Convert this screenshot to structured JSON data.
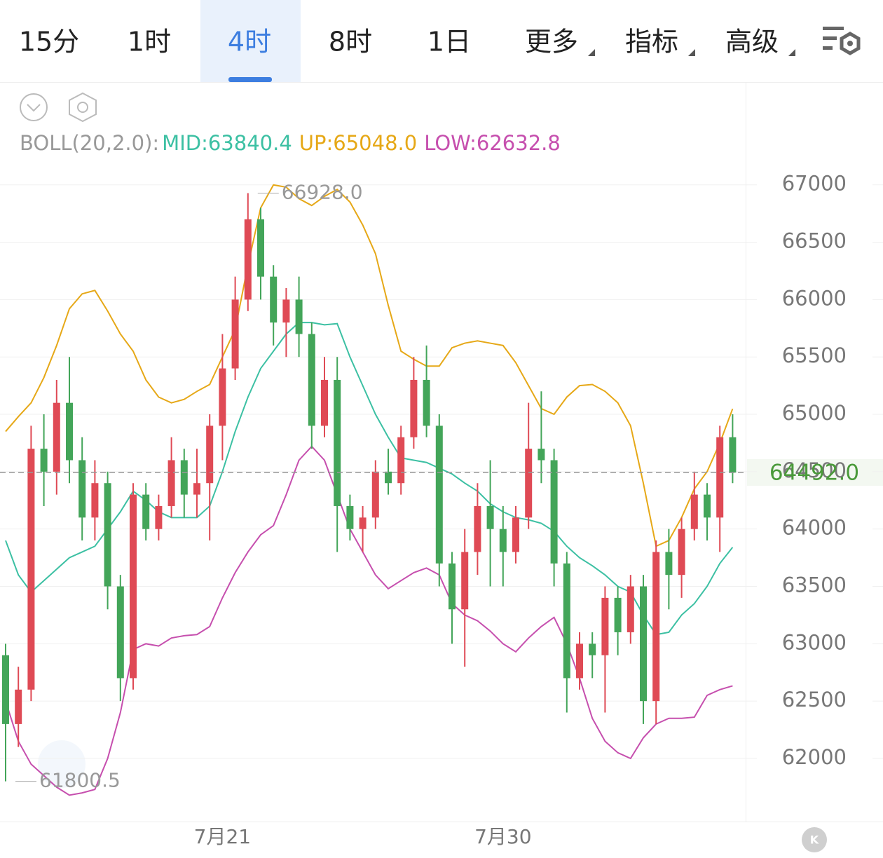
{
  "tabs": [
    "15分",
    "1时",
    "4时",
    "8时",
    "1日",
    "更多",
    "指标",
    "高级"
  ],
  "selected_tab": 2,
  "chart_data": {
    "type": "candlestick",
    "indicator": "BOLL(20,2.0):",
    "categories": [
      null,
      null,
      null,
      null,
      null,
      null,
      null,
      null,
      null,
      null,
      null,
      null,
      null,
      null,
      null,
      null,
      null,
      "7月21",
      null,
      null,
      null,
      null,
      null,
      null,
      null,
      null,
      null,
      null,
      null,
      null,
      null,
      null,
      null,
      null,
      null,
      null,
      null,
      null,
      null,
      "7月30",
      null,
      null,
      null,
      null,
      null,
      null,
      null,
      null,
      null,
      null,
      null,
      null,
      null,
      null,
      null,
      null,
      null,
      null
    ],
    "open": [
      62900,
      62300,
      62600,
      64700,
      64500,
      65100,
      64600,
      64100,
      64400,
      63500,
      62700,
      64300,
      64000,
      64200,
      64600,
      64300,
      64400,
      64900,
      65400,
      66000,
      66700,
      66200,
      65800,
      66000,
      65700,
      64900,
      65300,
      64200,
      64000,
      64100,
      64500,
      64400,
      64800,
      65300,
      64900,
      63700,
      63300,
      63800,
      64200,
      64000,
      63800,
      64100,
      64700,
      64600,
      63700,
      62700,
      63000,
      62900,
      63400,
      63100,
      63500,
      62500,
      63800,
      63600,
      64000,
      64300,
      64100,
      64800
    ],
    "high": [
      63000,
      62800,
      64900,
      65000,
      65300,
      65500,
      64800,
      64600,
      64500,
      63600,
      64400,
      64400,
      64300,
      64800,
      64700,
      64700,
      65000,
      65700,
      66200,
      66928,
      66800,
      66300,
      66100,
      66200,
      65800,
      65500,
      65500,
      64300,
      64200,
      64600,
      64700,
      64900,
      65500,
      65600,
      65000,
      63800,
      64000,
      64400,
      64600,
      64200,
      64200,
      65100,
      65200,
      64700,
      63800,
      63100,
      63100,
      63500,
      63500,
      63600,
      63600,
      63900,
      64000,
      64100,
      64500,
      64400,
      64900,
      65000
    ],
    "low": [
      61800.5,
      62100,
      62500,
      64200,
      64300,
      64400,
      63900,
      63900,
      63300,
      62500,
      62600,
      63900,
      63900,
      64100,
      64100,
      64100,
      63900,
      64600,
      65300,
      65900,
      66000,
      65600,
      65500,
      65500,
      64700,
      64800,
      63800,
      63900,
      63800,
      64000,
      64300,
      64300,
      64700,
      64800,
      63500,
      63000,
      62800,
      63600,
      63500,
      63500,
      63700,
      64000,
      64400,
      63500,
      62400,
      62600,
      62700,
      62400,
      62900,
      63000,
      62300,
      62300,
      63300,
      63400,
      63900,
      63900,
      63800,
      64400
    ],
    "close": [
      62300,
      62600,
      64700,
      64500,
      65100,
      64600,
      64100,
      64400,
      63500,
      62700,
      64300,
      64000,
      64200,
      64600,
      64300,
      64400,
      64900,
      65400,
      66000,
      66700,
      66200,
      65800,
      66000,
      65700,
      64900,
      65300,
      64200,
      64000,
      64100,
      64500,
      64400,
      64800,
      65300,
      64900,
      63700,
      63300,
      63800,
      64200,
      64000,
      63800,
      64100,
      64700,
      64600,
      63700,
      62700,
      63000,
      62900,
      63400,
      63100,
      63500,
      62500,
      63800,
      63600,
      64000,
      64300,
      64100,
      64800,
      64492
    ],
    "up_color": "#df4a55",
    "down_color": "#43a559",
    "series": [
      {
        "name": "MID:63840.4",
        "color": "#3cc0a3",
        "values": [
          63900,
          63600,
          63450,
          63550,
          63650,
          63750,
          63800,
          63850,
          64000,
          64150,
          64330,
          64250,
          64150,
          64100,
          64100,
          64100,
          64200,
          64500,
          64850,
          65150,
          65400,
          65550,
          65700,
          65800,
          65800,
          65780,
          65790,
          65500,
          65250,
          65000,
          64800,
          64620,
          64600,
          64580,
          64530,
          64480,
          64400,
          64330,
          64220,
          64150,
          64100,
          64080,
          64050,
          63980,
          63850,
          63750,
          63680,
          63600,
          63500,
          63450,
          63250,
          63080,
          63100,
          63250,
          63350,
          63500,
          63700,
          63840.4
        ]
      },
      {
        "name": "UP:65048.0",
        "color": "#e6a817",
        "values": [
          64850,
          64980,
          65100,
          65320,
          65600,
          65920,
          66050,
          66080,
          65900,
          65700,
          65550,
          65300,
          65150,
          65100,
          65130,
          65200,
          65260,
          65500,
          65740,
          66300,
          66800,
          67000,
          66980,
          66880,
          66820,
          66900,
          66960,
          66850,
          66650,
          66400,
          65950,
          65550,
          65480,
          65420,
          65420,
          65580,
          65620,
          65640,
          65620,
          65600,
          65450,
          65250,
          65050,
          65000,
          65150,
          65250,
          65260,
          65200,
          65100,
          64900,
          64400,
          63850,
          63900,
          64100,
          64350,
          64500,
          64750,
          65048
        ]
      },
      {
        "name": "LOW:62632.8",
        "color": "#c64fae",
        "values": [
          62500,
          62150,
          61950,
          61850,
          61750,
          61680,
          61700,
          61730,
          62000,
          62400,
          62950,
          63000,
          62980,
          63050,
          63070,
          63080,
          63150,
          63400,
          63620,
          63800,
          63950,
          64030,
          64300,
          64600,
          64720,
          64600,
          64300,
          64000,
          63800,
          63600,
          63480,
          63550,
          63620,
          63660,
          63600,
          63350,
          63250,
          63200,
          63110,
          63000,
          62930,
          63050,
          63150,
          63230,
          63000,
          62700,
          62350,
          62150,
          62050,
          62000,
          62180,
          62300,
          62350,
          62350,
          62360,
          62550,
          62600,
          62632.8
        ]
      }
    ],
    "ylim": [
      61450,
      67200
    ],
    "yticks": [
      62000,
      62500,
      63000,
      63500,
      64000,
      64500,
      65000,
      65500,
      66000,
      66500,
      67000
    ],
    "grid": true,
    "last_price": {
      "value": 64492,
      "label": "64492.0"
    },
    "annotations": [
      {
        "text": "66928.0",
        "value": 66928,
        "index": 19
      },
      {
        "text": "61800.5",
        "value": 61800.5,
        "index": 0
      }
    ]
  }
}
